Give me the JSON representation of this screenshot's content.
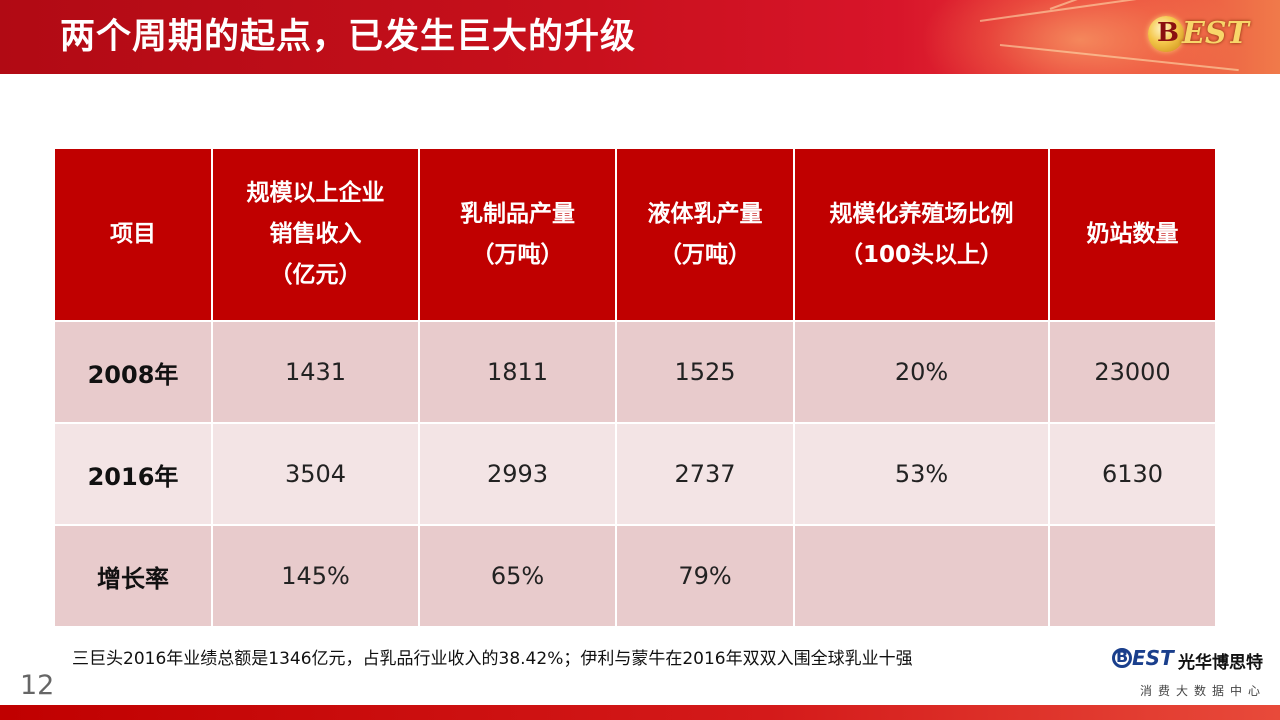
{
  "header": {
    "title": "两个周期的起点，已发生巨大的升级",
    "logo_letter": "B",
    "logo_text": "EST",
    "accent_color": "#c00000"
  },
  "table": {
    "headers": [
      "项目",
      "规模以上企业\n销售收入\n（亿元）",
      "乳制品产量\n（万吨）",
      "液体乳产量\n（万吨）",
      "规模化养殖场比例\n（100头以上）",
      "奶站数量"
    ],
    "rows": [
      {
        "label": "2008年",
        "values": [
          "1431",
          "1811",
          "1525",
          "20%",
          "23000"
        ]
      },
      {
        "label": "2016年",
        "values": [
          "3504",
          "2993",
          "2737",
          "53%",
          "6130"
        ]
      },
      {
        "label": "增长率",
        "values": [
          "145%",
          "65%",
          "79%",
          "",
          ""
        ]
      }
    ],
    "header_bg": "#c00000",
    "row_bg_odd": "#e8cbcc",
    "row_bg_even": "#f3e4e5"
  },
  "footnote": "三巨头2016年业绩总额是1346亿元，占乳品行业收入的38.42%；伊利与蒙牛在2016年双双入围全球乳业十强",
  "page_number": "12",
  "brand": {
    "logo_letter": "B",
    "logo_text": "EST",
    "name": "光华博思特",
    "subtitle": "消费大数据中心"
  }
}
